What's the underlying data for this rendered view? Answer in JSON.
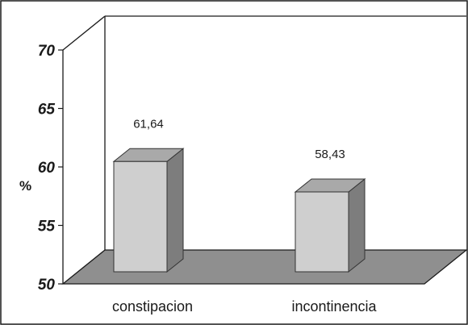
{
  "chart_data": {
    "type": "bar",
    "categories": [
      "constipacion",
      "incontinencia"
    ],
    "values": [
      61.64,
      58.43
    ],
    "data_labels": [
      "61,64",
      "58,43"
    ],
    "ylabel": "%",
    "ylim": [
      50,
      70
    ],
    "yticks": [
      "50",
      "55",
      "60",
      "65",
      "70"
    ],
    "grid": false,
    "legend": "none",
    "colors": {
      "bar_front": "#cfcfcf",
      "bar_side": "#7d7d7d",
      "bar_top": "#a9a9a9",
      "floor": "#8f8f8f",
      "frame": "#1a1a1a"
    }
  }
}
